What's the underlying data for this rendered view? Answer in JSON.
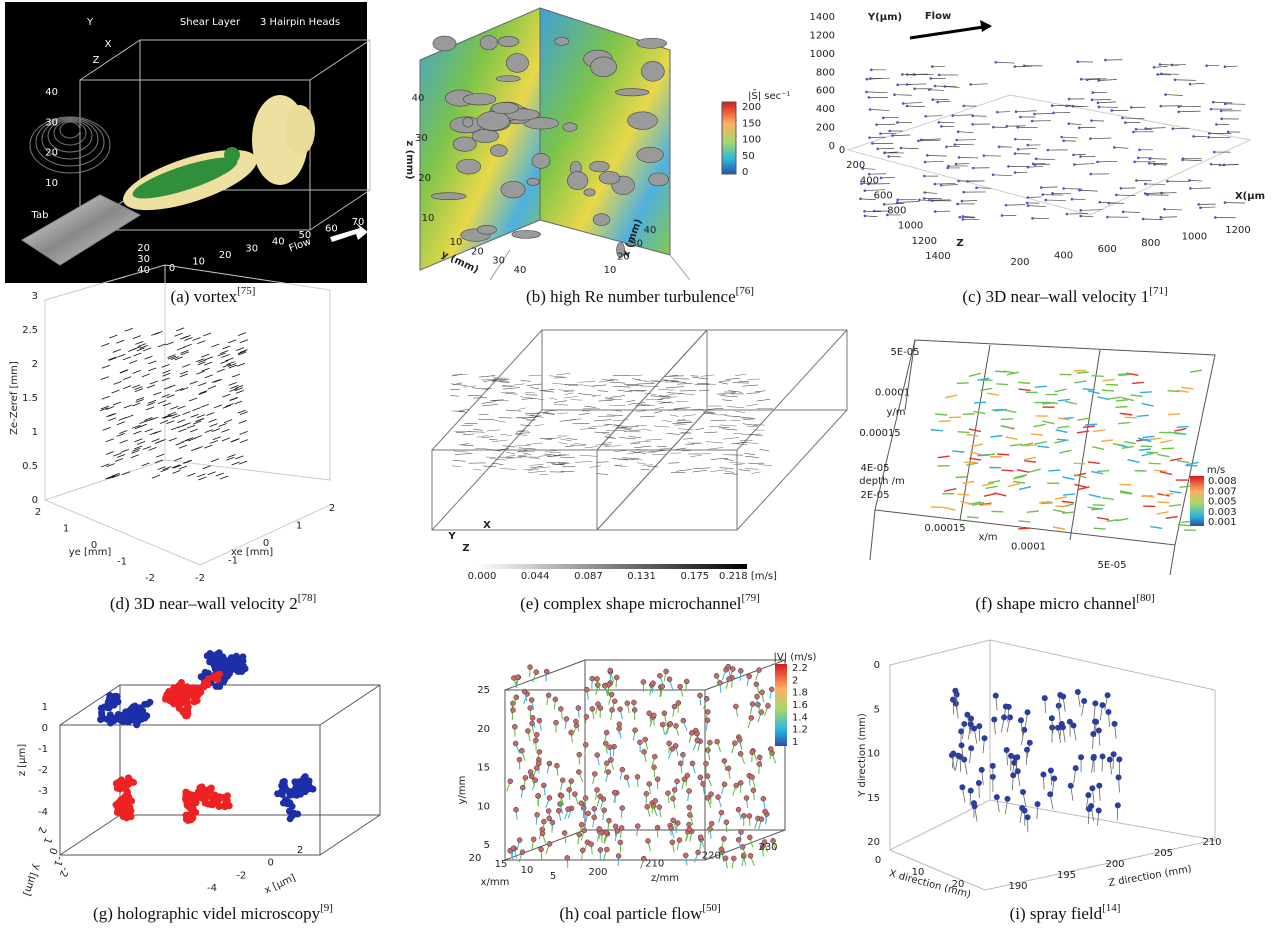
{
  "panels": {
    "a": {
      "caption": "(a) vortex",
      "ref": "[75]",
      "shear": "Shear Layer",
      "hairpin": "3 Hairpin Heads",
      "tab": "Tab",
      "flow": "Flow",
      "axes": [
        "Y",
        "X",
        "Z"
      ],
      "zticks": [
        "10",
        "20",
        "30",
        "40"
      ],
      "xticks": [
        "0",
        "10",
        "20",
        "30",
        "40",
        "50",
        "60",
        "70"
      ],
      "depthticks": [
        "20",
        "30",
        "40"
      ]
    },
    "b": {
      "caption": "(b) high Re number turbulence",
      "ref": "[76]",
      "zlabel": "z (mm)",
      "zticks": [
        "10",
        "20",
        "30",
        "40"
      ],
      "ylabel": "y (mm)",
      "yticks": [
        "10",
        "20",
        "30",
        "40"
      ],
      "xlabel": "x (mm)",
      "xticks": [
        "10",
        "20",
        "30",
        "40"
      ],
      "cbtitle": "|S̄| sec⁻¹",
      "cticks": [
        "200",
        "150",
        "100",
        "50",
        "0"
      ]
    },
    "c": {
      "caption": "(c) 3D near–wall velocity 1",
      "ref": "[71]",
      "ylabel": "Y(μm)",
      "flow": "Flow",
      "xlabel": "X(μm",
      "zlabel": "Z",
      "yticks": [
        "1400",
        "1200",
        "1000",
        "800",
        "600",
        "400",
        "200",
        "0"
      ],
      "zticks": [
        "0",
        "200",
        "400",
        "600",
        "800",
        "1000",
        "1200",
        "1400"
      ],
      "xticks": [
        "200",
        "400",
        "600",
        "800",
        "1000",
        "1200"
      ]
    },
    "d": {
      "caption": "(d) 3D near–wall velocity 2",
      "ref": "[78]",
      "zlabel": "Ze-Zeref [mm]",
      "zticks": [
        "3",
        "2.5",
        "2",
        "1.5",
        "1",
        "0.5",
        "0"
      ],
      "ylabel": "ye [mm]",
      "yticks": [
        "2",
        "1",
        "0",
        "-1",
        "-2"
      ],
      "xlabel": "xe [mm]",
      "xticks": [
        "-2",
        "-1",
        "0",
        "1",
        "2"
      ]
    },
    "e": {
      "caption": "(e) complex shape microchannel",
      "ref": "[79]",
      "axes": [
        "Y",
        "Z",
        "X"
      ],
      "cticks": [
        "0.000",
        "0.044",
        "0.087",
        "0.131",
        "0.175",
        "0.218 [m/s]"
      ]
    },
    "f": {
      "caption": "(f)  shape micro channel",
      "ref": "[80]",
      "ylabel": "y/m",
      "yticks": [
        "5E-05",
        "0.0001",
        "0.00015"
      ],
      "depth": "depth /m",
      "depthticks": [
        "4E-05",
        "2E-05"
      ],
      "xlabel": "x/m",
      "xticks": [
        "0.00015",
        "0.0001",
        "5E-05"
      ],
      "cbtitle": "m/s",
      "cticks": [
        "0.008",
        "0.007",
        "0.005",
        "0.003",
        "0.001"
      ]
    },
    "g": {
      "caption": "(g) holographic videl microscopy",
      "ref": "[9]",
      "zlabel": "z [μm]",
      "zticks": [
        "1",
        "0",
        "-1",
        "-2",
        "-3",
        "-4"
      ],
      "ylabel": "y [μm]",
      "yticks": [
        "2",
        "1",
        "0",
        "-1",
        "-2"
      ],
      "xlabel": "x [μm]",
      "xticks": [
        "-4",
        "-2",
        "0",
        "2"
      ]
    },
    "h": {
      "caption": "(h) coal particle flow",
      "ref": "[50]",
      "ylabel": "y/mm",
      "yticks": [
        "25",
        "20",
        "15",
        "10",
        "5"
      ],
      "xlabel": "x/mm",
      "xticks": [
        "20",
        "15",
        "10",
        "5"
      ],
      "zlabel": "z/mm",
      "zticks": [
        "200",
        "210",
        "220",
        "230"
      ],
      "cbtitle": "|V| (m/s)",
      "cticks": [
        "2.2",
        "2",
        "1.8",
        "1.6",
        "1.4",
        "1.2",
        "1"
      ]
    },
    "i": {
      "caption": "(i) spray field",
      "ref": "[14]",
      "ylabel": "Y direction (mm)",
      "yticks": [
        "0",
        "5",
        "10",
        "15",
        "20"
      ],
      "xlabel": "X direction (mm)",
      "xticks": [
        "0",
        "10",
        "20"
      ],
      "zlabel": "Z direction (mm)",
      "zticks": [
        "190",
        "195",
        "200",
        "205",
        "210"
      ]
    }
  }
}
